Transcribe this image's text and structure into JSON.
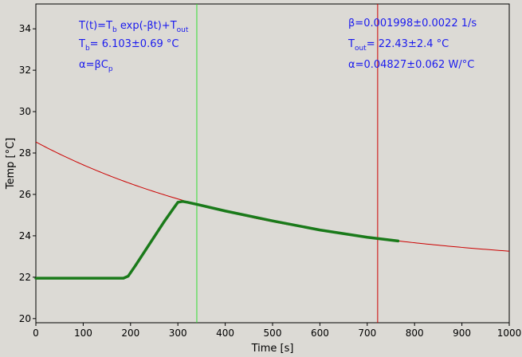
{
  "chart_data": {
    "type": "line",
    "xlabel": "Time [s]",
    "ylabel": "Temp [°C]",
    "xlim": [
      0,
      1000
    ],
    "ylim": [
      19.8,
      35.2
    ],
    "xticks": [
      0,
      100,
      200,
      300,
      400,
      500,
      600,
      700,
      800,
      900,
      1000
    ],
    "yticks": [
      20,
      22,
      24,
      26,
      28,
      30,
      32,
      34
    ],
    "grid": false,
    "series": [
      {
        "role": "fit",
        "color": "#cc0000",
        "model": {
          "Tb": 6.103,
          "beta": 0.001998,
          "Tout": 22.43
        },
        "x_range": [
          0,
          1000
        ]
      },
      {
        "role": "measured",
        "color": "#1a7a1a",
        "x": [
          0,
          100,
          185,
          195,
          210,
          240,
          270,
          290,
          300,
          310,
          320,
          340,
          400,
          500,
          600,
          700,
          765
        ],
        "y": [
          21.95,
          21.95,
          21.95,
          22.05,
          22.55,
          23.6,
          24.65,
          25.3,
          25.62,
          25.66,
          25.62,
          25.52,
          25.2,
          24.72,
          24.28,
          23.93,
          23.75
        ]
      }
    ],
    "vlines": [
      {
        "x": 340,
        "color": "#33dd33"
      },
      {
        "x": 722,
        "color": "#cc0000"
      }
    ],
    "annotations": {
      "left": {
        "formula": {
          "a": "T(t)=T",
          "a_sub": "b",
          "b": " exp(-βt)+T",
          "b_sub": "out"
        },
        "tb": {
          "a": "T",
          "a_sub": "b",
          "b": "= 6.103±0.69 °C"
        },
        "alpha_def": {
          "a": "α=βC",
          "a_sub": "p"
        }
      },
      "right": {
        "beta": "β=0.001998±0.0022 1/s",
        "tout": {
          "a": "T",
          "a_sub": "out",
          "b": "= 22.43±2.4 °C"
        },
        "alpha": "α=0.04827±0.062 W/°C"
      },
      "color": "#1a1aee"
    }
  }
}
